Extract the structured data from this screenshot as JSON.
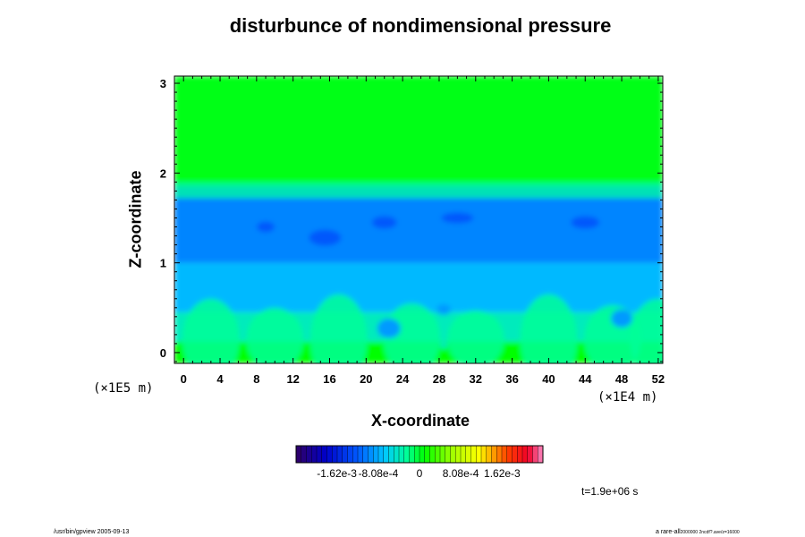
{
  "chart_data": {
    "type": "heatmap",
    "title": "disturbunce of nondimensional pressure",
    "xlabel": "X-coordinate",
    "ylabel": "Z-coordinate",
    "x_scale_label": "(×1E4 m)",
    "z_scale_label": "(×1E5 m)",
    "x_ticks": [
      "0",
      "4",
      "8",
      "12",
      "16",
      "20",
      "24",
      "28",
      "32",
      "36",
      "40",
      "44",
      "48",
      "52"
    ],
    "y_ticks": [
      "0",
      "1",
      "2",
      "3"
    ],
    "xlim": [
      -1,
      52.5
    ],
    "ylim": [
      -0.12,
      3.08
    ],
    "colorbar": {
      "tick_labels": [
        "-1.62e-3",
        "-8.08e-4",
        "0",
        "8.08e-4",
        "1.62e-3"
      ],
      "range": [
        -0.00242,
        0.00242
      ]
    },
    "field_description_values": {
      "upper_layer_z_range": [
        1.9,
        3.08
      ],
      "upper_layer_value": 5e-05,
      "interface_z": 1.85,
      "mid_layer_value": -0.001,
      "lower_layer_value": -0.0004,
      "surface_value": 0.0001
    },
    "time_label": "t=1.9e+06 s"
  },
  "footer": {
    "left": "/usr/bin/gpview 2005-09-13",
    "right_main": "a rare-all",
    "right_small": "2000000 2ncdf?.ave/z=16000"
  }
}
